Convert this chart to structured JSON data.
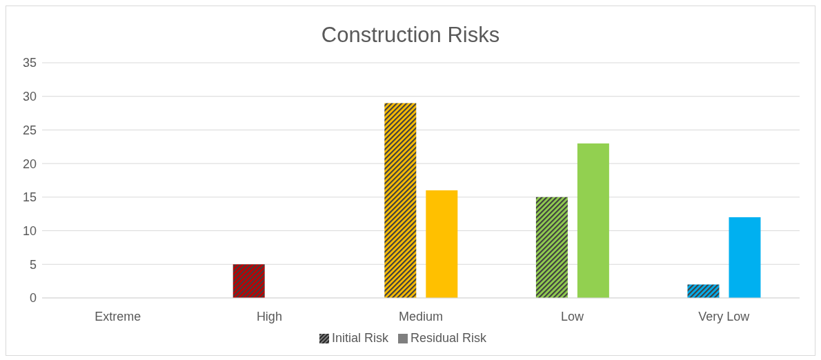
{
  "chart_data": {
    "type": "bar",
    "title": "Construction Risks",
    "categories": [
      "Extreme",
      "High",
      "Medium",
      "Low",
      "Very Low"
    ],
    "series": [
      {
        "name": "Initial Risk",
        "color": "#7f7f7f",
        "colors": [
          "#c00000",
          "#c00000",
          "#ffc000",
          "#92d050",
          "#00b0f0"
        ],
        "values": [
          0,
          5,
          29,
          15,
          2
        ]
      },
      {
        "name": "Residual Risk",
        "color": "#7f7f7f",
        "colors": [
          "#c00000",
          "#c00000",
          "#ffc000",
          "#92d050",
          "#00b0f0"
        ],
        "values": [
          0,
          0,
          16,
          23,
          12
        ]
      }
    ],
    "ylim": [
      0,
      35
    ],
    "yticks": [
      0,
      5,
      10,
      15,
      20,
      25,
      30,
      35
    ],
    "grid": "y",
    "legend": "bottom"
  }
}
